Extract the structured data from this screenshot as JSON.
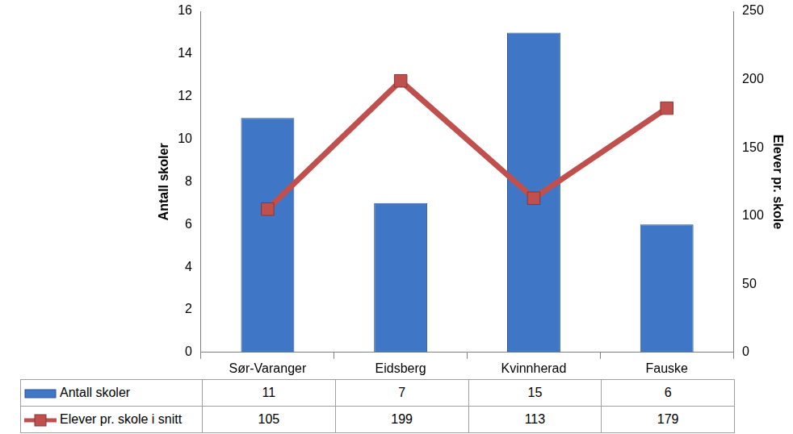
{
  "chart_data": {
    "type": "bar",
    "categories": [
      "Sør-Varanger",
      "Eidsberg",
      "Kvinnherad",
      "Fauske"
    ],
    "series": [
      {
        "name": "Antall skoler",
        "type": "bar",
        "color": "#3f76c6",
        "values": [
          11,
          7,
          15,
          6
        ]
      },
      {
        "name": "Elever pr. skole i snitt",
        "type": "line",
        "color": "#c0504d",
        "marker": "square",
        "axis": "y2",
        "values": [
          105,
          199,
          113,
          179
        ]
      }
    ],
    "ylabel": "Antall skoler",
    "y2label": "Elever pr. skole",
    "ylim": [
      0,
      16
    ],
    "yticks": [
      0,
      2,
      4,
      6,
      8,
      10,
      12,
      14,
      16
    ],
    "y2lim": [
      0,
      250
    ],
    "y2ticks": [
      0,
      50,
      100,
      150,
      200,
      250
    ],
    "grid": false
  }
}
